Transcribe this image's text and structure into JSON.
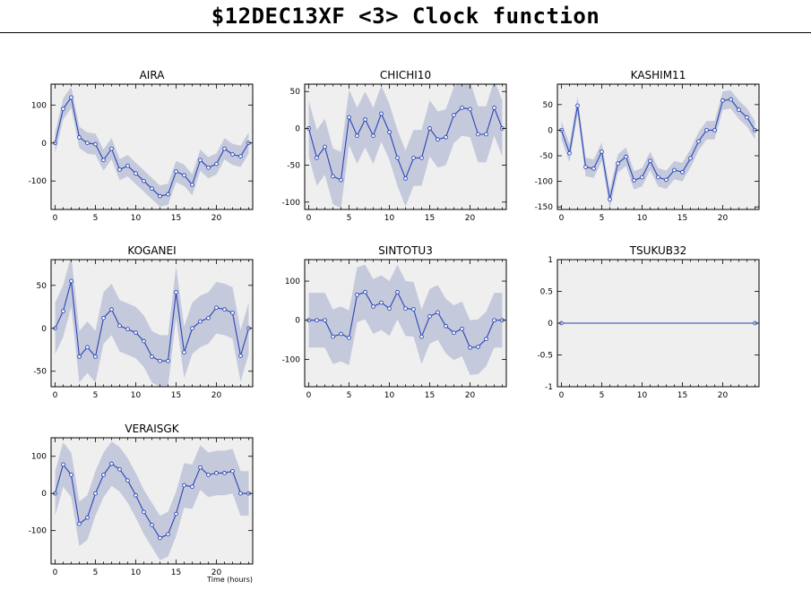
{
  "title": "$12DEC13XF <3>  Clock function",
  "colors": {
    "plot_bg": "#efefef",
    "band": "#c5c9dc",
    "line": "#2a46b4",
    "axis": "#000000"
  },
  "chart_data": [
    {
      "type": "line",
      "title": "AIRA",
      "xlim": [
        -0.5,
        24.5
      ],
      "ylim": [
        -175,
        155
      ],
      "xticks": [
        0,
        5,
        10,
        15,
        20
      ],
      "yticks": [
        -100,
        0,
        100
      ],
      "xlabel": "",
      "x": [
        0,
        1,
        2,
        3,
        4,
        5,
        6,
        7,
        8,
        9,
        10,
        11,
        12,
        13,
        14,
        15,
        16,
        17,
        18,
        19,
        20,
        21,
        22,
        23,
        24
      ],
      "values": [
        0,
        90,
        120,
        15,
        0,
        -3,
        -45,
        -15,
        -70,
        -60,
        -80,
        -100,
        -120,
        -140,
        -135,
        -75,
        -85,
        -110,
        -45,
        -65,
        -55,
        -15,
        -30,
        -35,
        0
      ],
      "band": 28
    },
    {
      "type": "line",
      "title": "CHICHI10",
      "xlim": [
        -0.5,
        24.5
      ],
      "ylim": [
        -110,
        60
      ],
      "xticks": [
        0,
        5,
        10,
        15,
        20
      ],
      "yticks": [
        -100,
        -50,
        0,
        50
      ],
      "xlabel": "",
      "x": [
        0,
        1,
        2,
        3,
        4,
        5,
        6,
        7,
        8,
        9,
        10,
        11,
        12,
        13,
        14,
        15,
        16,
        17,
        18,
        19,
        20,
        21,
        22,
        23,
        24
      ],
      "values": [
        0,
        -40,
        -25,
        -65,
        -70,
        15,
        -10,
        12,
        -10,
        20,
        -5,
        -40,
        -68,
        -40,
        -40,
        0,
        -15,
        -12,
        18,
        28,
        26,
        -8,
        -8,
        28,
        0
      ],
      "band": 38
    },
    {
      "type": "line",
      "title": "KASHIM11",
      "xlim": [
        -0.5,
        24.5
      ],
      "ylim": [
        -155,
        90
      ],
      "xticks": [
        0,
        5,
        10,
        15,
        20
      ],
      "yticks": [
        -150,
        -100,
        -50,
        0,
        50
      ],
      "xlabel": "",
      "x": [
        0,
        1,
        2,
        3,
        4,
        5,
        6,
        7,
        8,
        9,
        10,
        11,
        12,
        13,
        14,
        15,
        16,
        17,
        18,
        19,
        20,
        21,
        22,
        23,
        24
      ],
      "values": [
        0,
        -45,
        48,
        -72,
        -75,
        -42,
        -135,
        -65,
        -52,
        -98,
        -92,
        -60,
        -92,
        -97,
        -78,
        -82,
        -55,
        -22,
        0,
        0,
        58,
        60,
        40,
        25,
        0
      ],
      "band": 18
    },
    {
      "type": "line",
      "title": "KOGANEI",
      "xlim": [
        -0.5,
        24.5
      ],
      "ylim": [
        -68,
        80
      ],
      "xticks": [
        0,
        5,
        10,
        15,
        20
      ],
      "yticks": [
        -50,
        0,
        50
      ],
      "xlabel": "",
      "x": [
        0,
        1,
        2,
        3,
        4,
        5,
        6,
        7,
        8,
        9,
        10,
        11,
        12,
        13,
        14,
        15,
        16,
        17,
        18,
        19,
        20,
        21,
        22,
        23,
        24
      ],
      "values": [
        0,
        20,
        55,
        -33,
        -22,
        -33,
        12,
        22,
        3,
        -1,
        -5,
        -15,
        -33,
        -38,
        -38,
        42,
        -28,
        0,
        8,
        12,
        24,
        22,
        18,
        -32,
        0
      ],
      "band": 30
    },
    {
      "type": "line",
      "title": "SINTOTU3",
      "xlim": [
        -0.5,
        24.5
      ],
      "ylim": [
        -170,
        155
      ],
      "xticks": [
        0,
        5,
        10,
        15,
        20
      ],
      "yticks": [
        -100,
        0,
        100
      ],
      "xlabel": "",
      "x": [
        0,
        1,
        2,
        3,
        4,
        5,
        6,
        7,
        8,
        9,
        10,
        11,
        12,
        13,
        14,
        15,
        16,
        17,
        18,
        19,
        20,
        21,
        22,
        23,
        24
      ],
      "values": [
        0,
        0,
        0,
        -42,
        -35,
        -45,
        65,
        72,
        35,
        45,
        30,
        72,
        30,
        28,
        -42,
        10,
        20,
        -15,
        -32,
        -22,
        -70,
        -68,
        -48,
        0,
        0
      ],
      "band": 70
    },
    {
      "type": "line",
      "title": "TSUKUB32",
      "xlim": [
        -0.5,
        24.5
      ],
      "ylim": [
        -1,
        1
      ],
      "xticks": [
        0,
        5,
        10,
        15,
        20
      ],
      "yticks": [
        -1,
        -0.5,
        0,
        0.5,
        1
      ],
      "xlabel": "",
      "x": [
        0,
        24
      ],
      "values": [
        0,
        0
      ],
      "band": 0
    },
    {
      "type": "line",
      "title": "VERAISGK",
      "xlim": [
        -0.5,
        24.5
      ],
      "ylim": [
        -190,
        150
      ],
      "xticks": [
        0,
        5,
        10,
        15,
        20
      ],
      "yticks": [
        -100,
        0,
        100
      ],
      "xlabel": "Time (hours)",
      "x": [
        0,
        1,
        2,
        3,
        4,
        5,
        6,
        7,
        8,
        9,
        10,
        11,
        12,
        13,
        14,
        15,
        16,
        17,
        18,
        19,
        20,
        21,
        22,
        23,
        24
      ],
      "values": [
        0,
        78,
        50,
        -82,
        -65,
        0,
        50,
        80,
        65,
        35,
        -5,
        -50,
        -85,
        -120,
        -110,
        -55,
        22,
        18,
        70,
        50,
        55,
        55,
        60,
        0,
        0
      ],
      "band": 60
    }
  ]
}
